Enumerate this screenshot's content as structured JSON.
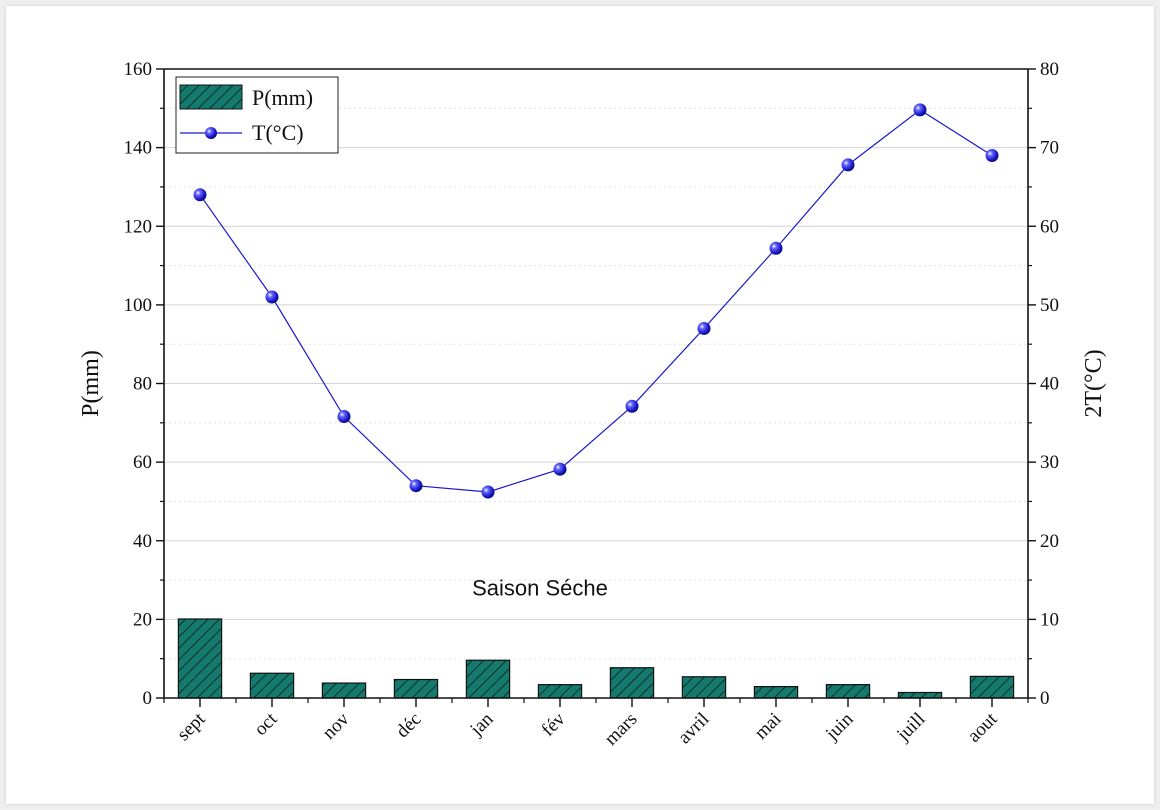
{
  "chart_data": {
    "type": "bar+line",
    "categories": [
      "sept",
      "oct",
      "nov",
      "déc",
      "jan",
      "fév",
      "mars",
      "avril",
      "mai",
      "juin",
      "juill",
      "aout"
    ],
    "series": [
      {
        "name": "P(mm)",
        "type": "bar",
        "axis": "left",
        "color": "#157a6e",
        "hatch": "diagonal",
        "values": [
          20.1,
          6.3,
          3.8,
          4.7,
          9.6,
          3.4,
          7.7,
          5.4,
          2.9,
          3.4,
          1.4,
          5.5
        ]
      },
      {
        "name": "T(°C)",
        "type": "line",
        "axis": "right",
        "color": "#1a1acc",
        "marker": "sphere",
        "values": [
          64.0,
          51.0,
          35.8,
          27.0,
          26.2,
          29.1,
          37.1,
          47.0,
          57.2,
          67.8,
          74.8,
          69.0
        ]
      }
    ],
    "ylabel": "P(mm)",
    "y2label": "2T(°C)",
    "ylim": [
      0,
      160
    ],
    "y2lim": [
      0,
      80
    ],
    "yticks": [
      0,
      20,
      40,
      60,
      80,
      100,
      120,
      140,
      160
    ],
    "y2ticks": [
      0,
      10,
      20,
      30,
      40,
      50,
      60,
      70,
      80
    ],
    "annotation": "Saison Séche",
    "legend_position": "top-left",
    "grid": true
  }
}
